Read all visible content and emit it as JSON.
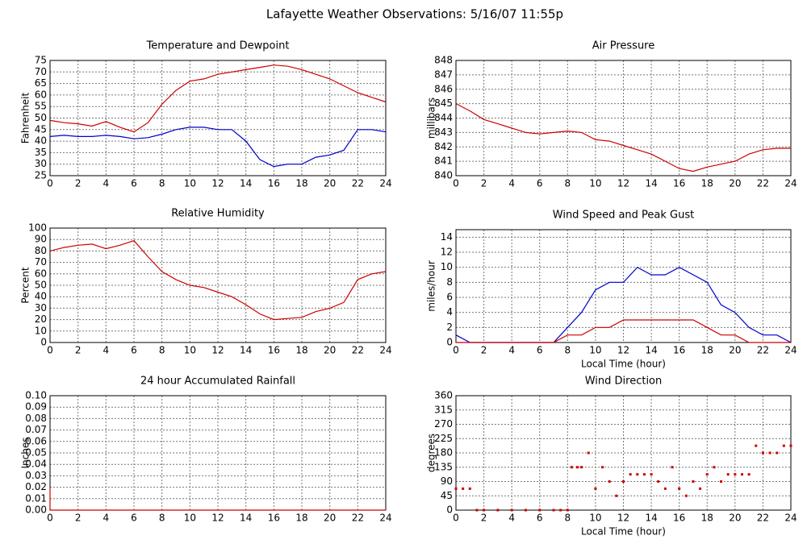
{
  "title": "Lafayette Weather Observations: 5/16/07 11:55p",
  "chart_data": [
    {
      "type": "line",
      "title": "Temperature and Dewpoint",
      "ylabel": "Fahrenheit",
      "x": [
        0,
        1,
        2,
        3,
        4,
        5,
        6,
        7,
        8,
        9,
        10,
        11,
        12,
        13,
        14,
        15,
        16,
        17,
        18,
        19,
        20,
        21,
        22,
        23,
        24
      ],
      "series": [
        {
          "color": "#cc0000",
          "values": [
            49,
            48,
            47.5,
            46.5,
            48.5,
            46,
            44,
            48,
            56,
            62,
            66,
            67,
            69,
            70,
            71,
            72,
            73,
            72.5,
            71,
            69,
            67,
            64,
            61,
            59,
            57
          ]
        },
        {
          "color": "#0000cc",
          "values": [
            42,
            42.5,
            42,
            42,
            42.5,
            42,
            41,
            41.5,
            43,
            45,
            46,
            46,
            45,
            45,
            40,
            32,
            29,
            30,
            30,
            33,
            34,
            36,
            45,
            45,
            44
          ]
        }
      ],
      "xlim": [
        0,
        24
      ],
      "xticks": [
        0,
        2,
        4,
        6,
        8,
        10,
        12,
        14,
        16,
        18,
        20,
        22,
        24
      ],
      "ylim": [
        25,
        75
      ],
      "yticks": [
        25,
        30,
        35,
        40,
        45,
        50,
        55,
        60,
        65,
        70,
        75
      ],
      "grid": true
    },
    {
      "type": "line",
      "title": "Air Pressure",
      "ylabel": "millibars",
      "x": [
        0,
        1,
        2,
        3,
        4,
        5,
        6,
        7,
        8,
        9,
        10,
        11,
        12,
        13,
        14,
        15,
        16,
        17,
        18,
        19,
        20,
        21,
        22,
        23,
        24
      ],
      "series": [
        {
          "color": "#cc0000",
          "values": [
            845,
            844.5,
            843.9,
            843.6,
            843.3,
            843,
            842.9,
            843,
            843.1,
            843,
            842.5,
            842.4,
            842.1,
            841.8,
            841.5,
            841,
            840.5,
            840.3,
            840.6,
            840.8,
            841,
            841.5,
            841.8,
            841.9,
            841.9
          ]
        }
      ],
      "xlim": [
        0,
        24
      ],
      "xticks": [
        0,
        2,
        4,
        6,
        8,
        10,
        12,
        14,
        16,
        18,
        20,
        22,
        24
      ],
      "ylim": [
        840,
        848
      ],
      "yticks": [
        840,
        841,
        842,
        843,
        844,
        845,
        846,
        847,
        848
      ],
      "grid": true
    },
    {
      "type": "line",
      "title": "Relative Humidity",
      "ylabel": "Percent",
      "x": [
        0,
        1,
        2,
        3,
        4,
        5,
        6,
        7,
        8,
        9,
        10,
        11,
        12,
        13,
        14,
        15,
        16,
        17,
        18,
        19,
        20,
        21,
        22,
        23,
        24
      ],
      "series": [
        {
          "color": "#cc0000",
          "values": [
            80,
            83,
            85,
            86,
            82,
            85,
            89,
            75,
            62,
            55,
            50,
            48,
            44,
            40,
            33,
            25,
            20,
            21,
            22,
            27,
            30,
            35,
            55,
            60,
            62
          ]
        }
      ],
      "xlim": [
        0,
        24
      ],
      "xticks": [
        0,
        2,
        4,
        6,
        8,
        10,
        12,
        14,
        16,
        18,
        20,
        22,
        24
      ],
      "ylim": [
        0,
        100
      ],
      "yticks": [
        0,
        10,
        20,
        30,
        40,
        50,
        60,
        70,
        80,
        90,
        100
      ],
      "grid": true
    },
    {
      "type": "line",
      "title": "Wind Speed and Peak Gust",
      "ylabel": "miles/hour",
      "xlabel": "Local Time (hour)",
      "x": [
        0,
        1,
        2,
        3,
        4,
        5,
        6,
        7,
        8,
        9,
        10,
        11,
        12,
        13,
        14,
        15,
        16,
        17,
        18,
        19,
        20,
        21,
        22,
        23,
        24
      ],
      "series": [
        {
          "color": "#0000cc",
          "values": [
            1,
            0,
            0,
            0,
            0,
            0,
            0,
            0,
            2,
            4,
            7,
            8,
            8,
            10,
            9,
            9,
            10,
            9,
            8,
            5,
            4,
            2,
            1,
            1,
            0
          ]
        },
        {
          "color": "#cc0000",
          "values": [
            0,
            0,
            0,
            0,
            0,
            0,
            0,
            0,
            1,
            1,
            2,
            2,
            3,
            3,
            3,
            3,
            3,
            3,
            2,
            1,
            1,
            0,
            0,
            0,
            0
          ]
        }
      ],
      "xlim": [
        0,
        24
      ],
      "xticks": [
        0,
        2,
        4,
        6,
        8,
        10,
        12,
        14,
        16,
        18,
        20,
        22,
        24
      ],
      "ylim": [
        0,
        15
      ],
      "yticks": [
        0,
        2,
        4,
        6,
        8,
        10,
        12,
        14
      ],
      "grid": true
    },
    {
      "type": "line",
      "title": "24 hour Accumulated Rainfall",
      "ylabel": "Inches",
      "x": [
        0,
        0,
        24
      ],
      "series": [
        {
          "color": "#cc0000",
          "values": [
            0.02,
            0,
            0
          ]
        }
      ],
      "xlim": [
        0,
        24
      ],
      "xticks": [
        0,
        2,
        4,
        6,
        8,
        10,
        12,
        14,
        16,
        18,
        20,
        22,
        24
      ],
      "ylim": [
        0,
        0.1
      ],
      "yticks": [
        {
          "value": 0,
          "label": "0.00"
        },
        {
          "value": 0.01,
          "label": "0.01"
        },
        {
          "value": 0.02,
          "label": "0.02"
        },
        {
          "value": 0.03,
          "label": "0.03"
        },
        {
          "value": 0.04,
          "label": "0.04"
        },
        {
          "value": 0.05,
          "label": "0.05"
        },
        {
          "value": 0.06,
          "label": "0.06"
        },
        {
          "value": 0.07,
          "label": "0.07"
        },
        {
          "value": 0.08,
          "label": "0.08"
        },
        {
          "value": 0.09,
          "label": "0.09"
        },
        {
          "value": 0.1,
          "label": "0.10"
        }
      ],
      "grid": true
    },
    {
      "type": "scatter",
      "title": "Wind Direction",
      "ylabel": "degrees",
      "xlabel": "Local Time (hour)",
      "color": "#cc0000",
      "x": [
        0,
        0.5,
        1,
        1.5,
        2,
        3,
        4,
        5,
        6,
        7,
        7.5,
        8,
        8.3,
        8.7,
        9,
        9.5,
        10,
        10.5,
        11,
        11.5,
        12,
        12.5,
        13,
        13.5,
        14,
        14.5,
        15,
        15.5,
        16,
        16.5,
        17,
        17.5,
        18,
        18.5,
        19,
        19.5,
        20,
        20.5,
        21,
        21.5,
        22,
        22.5,
        23,
        23.5,
        24
      ],
      "values": [
        67.5,
        67.5,
        67.5,
        0,
        0,
        0,
        0,
        0,
        0,
        0,
        0,
        0,
        135,
        135,
        135,
        180,
        67.5,
        135,
        90,
        45,
        90,
        112.5,
        112.5,
        112.5,
        112.5,
        90,
        67.5,
        135,
        67.5,
        45,
        90,
        67.5,
        112.5,
        135,
        90,
        112.5,
        112.5,
        112.5,
        112.5,
        202.5,
        180,
        180,
        180,
        202.5,
        202.5
      ],
      "xlim": [
        0,
        24
      ],
      "xticks": [
        0,
        2,
        4,
        6,
        8,
        10,
        12,
        14,
        16,
        18,
        20,
        22,
        24
      ],
      "ylim": [
        0,
        360
      ],
      "yticks": [
        0,
        45,
        90,
        135,
        180,
        225,
        270,
        315,
        360
      ],
      "grid": true
    }
  ]
}
